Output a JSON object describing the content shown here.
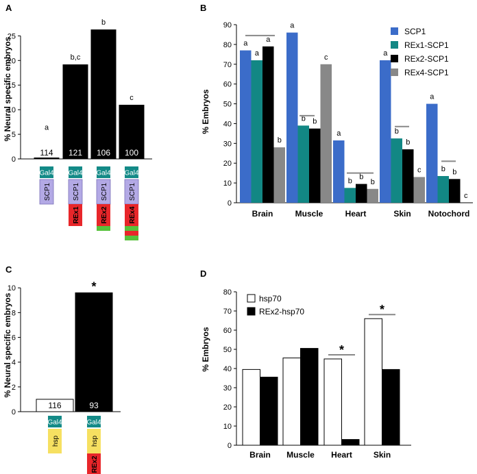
{
  "panels": {
    "A": "A",
    "B": "B",
    "C": "C",
    "D": "D"
  },
  "chart_data": [
    {
      "id": "A",
      "type": "bar",
      "ylabel": "% Neural specific embryos",
      "ylim": [
        0,
        27
      ],
      "yticks": [
        0,
        5,
        10,
        15,
        20,
        25
      ],
      "categories": [
        "SCP1",
        "REx1-SCP1",
        "REx2-SCP1",
        "REx4-SCP1"
      ],
      "values": [
        0.3,
        19.2,
        26.3,
        11
      ],
      "n_labels": [
        "114",
        "121",
        "106",
        "100"
      ],
      "sig_labels": [
        "a",
        "b,c",
        "b",
        "c"
      ],
      "color": "#000000",
      "constructs": [
        [
          {
            "t": "Gal4",
            "c": "#138a87",
            "fg": "#ffffff"
          },
          {
            "t": "SCP1",
            "c": "#b3a9e5",
            "fg": "#000000"
          }
        ],
        [
          {
            "t": "Gal4",
            "c": "#138a87",
            "fg": "#ffffff"
          },
          {
            "t": "SCP1",
            "c": "#b3a9e5",
            "fg": "#000000"
          },
          {
            "t": "REx1",
            "c": "#e8262a",
            "fg": "#000000"
          }
        ],
        [
          {
            "t": "Gal4",
            "c": "#138a87",
            "fg": "#ffffff"
          },
          {
            "t": "SCP1",
            "c": "#b3a9e5",
            "fg": "#000000"
          },
          {
            "t": "REx2",
            "c": "#e8262a",
            "fg": "#000000"
          },
          {
            "t": "",
            "c": "#57c23b",
            "fg": "#000000"
          }
        ],
        [
          {
            "t": "Gal4",
            "c": "#138a87",
            "fg": "#ffffff"
          },
          {
            "t": "SCP1",
            "c": "#b3a9e5",
            "fg": "#000000"
          },
          {
            "t": "REx4",
            "c": "#e8262a",
            "fg": "#000000"
          },
          {
            "t": "",
            "c": "#57c23b",
            "fg": "#000000"
          },
          {
            "t": "",
            "c": "#e8262a",
            "fg": "#000000"
          },
          {
            "t": "",
            "c": "#57c23b",
            "fg": "#000000"
          }
        ]
      ]
    },
    {
      "id": "B",
      "type": "bar",
      "ylabel": "% Embryos",
      "ylim": [
        0,
        90
      ],
      "yticks": [
        0,
        10,
        20,
        30,
        40,
        50,
        60,
        70,
        80,
        90
      ],
      "categories": [
        "Brain",
        "Muscle",
        "Heart",
        "Skin",
        "Notochord"
      ],
      "series": [
        {
          "name": "SCP1",
          "color": "#3b6cc9",
          "values": [
            77,
            86,
            31.5,
            72,
            50
          ]
        },
        {
          "name": "REx1-SCP1",
          "color": "#128784",
          "values": [
            72,
            39,
            7.5,
            32.5,
            13.5
          ]
        },
        {
          "name": "REx2-SCP1",
          "color": "#000000",
          "values": [
            79,
            37.5,
            9.5,
            27,
            12
          ]
        },
        {
          "name": "REx4-SCP1",
          "color": "#888888",
          "values": [
            28,
            70,
            7,
            13,
            0
          ]
        }
      ],
      "sig_labels": [
        [
          "a",
          "a",
          "a",
          "b"
        ],
        [
          "a",
          "b",
          "b",
          "c"
        ],
        [
          "a",
          "b",
          "b",
          "b"
        ],
        [
          "a",
          "b",
          "b",
          "c"
        ],
        [
          "a",
          "b",
          "b",
          "c"
        ]
      ]
    },
    {
      "id": "C",
      "type": "bar",
      "ylabel": "% Neural specific embryos",
      "ylim": [
        0,
        10.4
      ],
      "yticks": [
        0,
        2,
        4,
        6,
        8,
        10
      ],
      "categories": [
        "hsp70",
        "REx2-hsp70"
      ],
      "values": [
        1.0,
        9.6
      ],
      "n_labels": [
        "116",
        "93"
      ],
      "fills": [
        "#ffffff",
        "#000000"
      ],
      "star": "*",
      "constructs": [
        [
          {
            "t": "Gal4",
            "c": "#138a87",
            "fg": "#ffffff"
          },
          {
            "t": "hsp",
            "c": "#f6e061",
            "fg": "#000000"
          }
        ],
        [
          {
            "t": "Gal4",
            "c": "#138a87",
            "fg": "#ffffff"
          },
          {
            "t": "hsp",
            "c": "#f6e061",
            "fg": "#000000"
          },
          {
            "t": "REx2",
            "c": "#e8262a",
            "fg": "#000000"
          },
          {
            "t": "",
            "c": "#57c23b",
            "fg": "#000000"
          }
        ]
      ]
    },
    {
      "id": "D",
      "type": "bar",
      "ylabel": "% Embryos",
      "ylim": [
        0,
        80
      ],
      "yticks": [
        0,
        10,
        20,
        30,
        40,
        50,
        60,
        70,
        80
      ],
      "categories": [
        "Brain",
        "Muscle",
        "Heart",
        "Skin"
      ],
      "series": [
        {
          "name": "hsp70",
          "color": "#ffffff",
          "values": [
            39.5,
            45.5,
            45,
            66
          ]
        },
        {
          "name": "REx2-hsp70",
          "color": "#000000",
          "values": [
            35.5,
            50.5,
            3,
            39.5
          ]
        }
      ],
      "stars": [
        null,
        null,
        "*",
        "*"
      ]
    }
  ]
}
